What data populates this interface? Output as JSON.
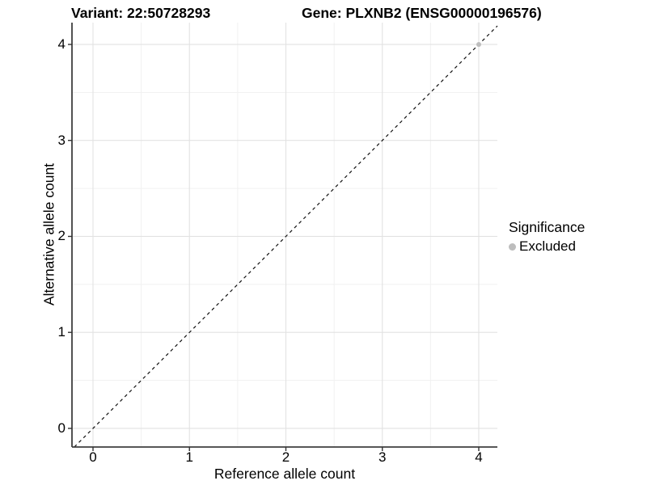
{
  "titles": {
    "left": "Variant: 22:50728293",
    "right": "Gene: PLXNB2 (ENSG00000196576)"
  },
  "chart_data": {
    "type": "scatter",
    "title_left": "Variant: 22:50728293",
    "title_right": "Gene: PLXNB2 (ENSG00000196576)",
    "xlabel": "Reference allele count",
    "ylabel": "Alternative allele count",
    "xlim": [
      -0.218,
      4.193
    ],
    "ylim": [
      -0.194,
      4.227
    ],
    "x_ticks": [
      0,
      1,
      2,
      3,
      4
    ],
    "y_ticks": [
      0,
      1,
      2,
      3,
      4
    ],
    "x_minor_ticks": [
      0.5,
      1.5,
      2.5,
      3.5
    ],
    "y_minor_ticks": [
      0.5,
      1.5,
      2.5,
      3.5
    ],
    "grid": true,
    "legend_position": "right",
    "points": [
      {
        "x": 4,
        "y": 4,
        "series": "Excluded",
        "color": "#bdbdbd"
      }
    ],
    "reference_line": {
      "slope": 1,
      "intercept": 0,
      "style": "dashed",
      "color": "#111111"
    },
    "legend": {
      "title": "Significance",
      "items": [
        {
          "label": "Excluded",
          "color": "#bdbdbd"
        }
      ]
    },
    "colors": {
      "major_grid": "#e2e2e2",
      "minor_grid": "#f1f1f1",
      "axis_line": "#3f3f3f",
      "tick_mark": "#333333"
    }
  }
}
